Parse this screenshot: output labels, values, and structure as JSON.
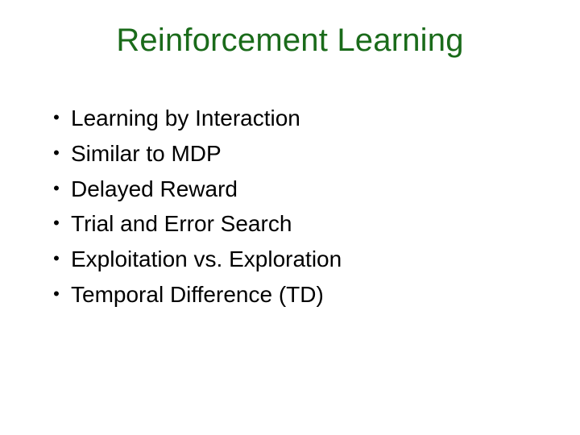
{
  "slide": {
    "title": "Reinforcement Learning",
    "title_color": "#1a6b1a",
    "title_fontsize": 40,
    "background_color": "#ffffff",
    "bullet_fontsize": 28,
    "bullet_color": "#000000",
    "bullet_marker": "•",
    "bullets": [
      {
        "text": "Learning by Interaction"
      },
      {
        "text": "Similar to MDP"
      },
      {
        "text": "Delayed Reward"
      },
      {
        "text": "Trial and Error Search"
      },
      {
        "text": "Exploitation vs. Exploration"
      },
      {
        "text": "Temporal Difference (TD)"
      }
    ]
  }
}
